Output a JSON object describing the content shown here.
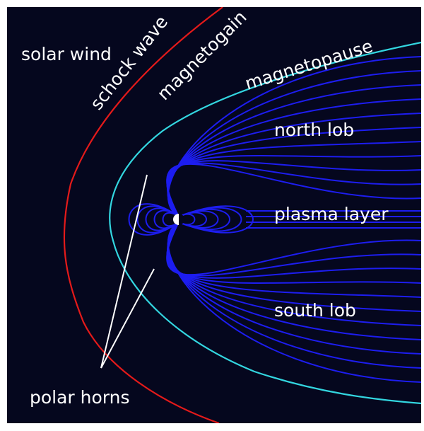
{
  "labels": {
    "solar_wind": "solar wind",
    "shock_wave": "schock wave",
    "magnetogain": "magnetogain",
    "magnetopause": "magnetopause",
    "north_lob": "north lob",
    "plasma_layer": "plasma layer",
    "south_lob": "south lob",
    "polar_horns": "polar horns"
  },
  "colors": {
    "background": "#05071e",
    "shock_wave_line": "#e41a1a",
    "magnetopause_line": "#33d6e0",
    "field_lines": "#1d1df0",
    "label_text": "#ffffff"
  }
}
